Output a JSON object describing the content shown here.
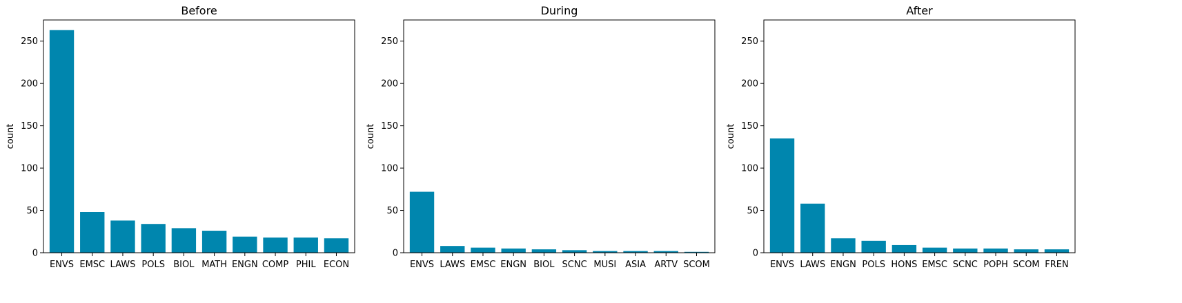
{
  "colors": {
    "bar": "#0086ae",
    "axis": "#000000",
    "background": "#ffffff"
  },
  "chart_data": [
    {
      "type": "bar",
      "title": "Before",
      "xlabel": "",
      "ylabel": "count",
      "ylim": [
        0,
        275
      ],
      "yticks": [
        0,
        50,
        100,
        150,
        200,
        250
      ],
      "grid": false,
      "categories": [
        "ENVS",
        "EMSC",
        "LAWS",
        "POLS",
        "BIOL",
        "MATH",
        "ENGN",
        "COMP",
        "PHIL",
        "ECON"
      ],
      "values": [
        263,
        48,
        38,
        34,
        29,
        26,
        19,
        18,
        18,
        17
      ]
    },
    {
      "type": "bar",
      "title": "During",
      "xlabel": "",
      "ylabel": "count",
      "ylim": [
        0,
        275
      ],
      "yticks": [
        0,
        50,
        100,
        150,
        200,
        250
      ],
      "grid": false,
      "categories": [
        "ENVS",
        "LAWS",
        "EMSC",
        "ENGN",
        "BIOL",
        "SCNC",
        "MUSI",
        "ASIA",
        "ARTV",
        "SCOM"
      ],
      "values": [
        72,
        8,
        6,
        5,
        4,
        3,
        2,
        2,
        2,
        1
      ]
    },
    {
      "type": "bar",
      "title": "After",
      "xlabel": "",
      "ylabel": "count",
      "ylim": [
        0,
        275
      ],
      "yticks": [
        0,
        50,
        100,
        150,
        200,
        250
      ],
      "grid": false,
      "categories": [
        "ENVS",
        "LAWS",
        "ENGN",
        "POLS",
        "HONS",
        "EMSC",
        "SCNC",
        "POPH",
        "SCOM",
        "FREN"
      ],
      "values": [
        135,
        58,
        17,
        14,
        9,
        6,
        5,
        5,
        4,
        4
      ]
    }
  ]
}
